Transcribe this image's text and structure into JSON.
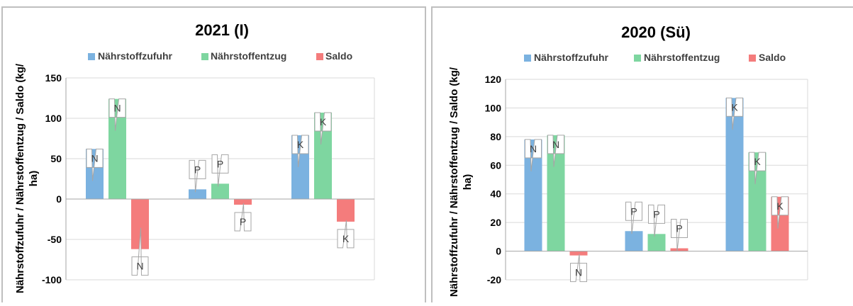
{
  "colors": {
    "zufuhr": "#7bb2e0",
    "entzug": "#7ed6a0",
    "saldo": "#f47c7c",
    "grid": "#d9d9d9",
    "axis": "#a6a6a6",
    "panel_border": "#bfbfbf",
    "callout_border": "#a6a6a6"
  },
  "chart_data": [
    {
      "type": "bar",
      "title": "2021 (I)",
      "ylabel": "Nährstoffzufuhr / Nährstoffentzug / Saldo (kg/ha)",
      "xlabel": "",
      "categories": [
        "N",
        "P",
        "K"
      ],
      "series": [
        {
          "name": "Nährstoffzufuhr",
          "values": [
            62,
            12,
            79
          ],
          "labels": [
            "N",
            "P",
            "K"
          ]
        },
        {
          "name": "Nährstoffentzug",
          "values": [
            124,
            19,
            107
          ],
          "labels": [
            "N",
            "P",
            "K"
          ]
        },
        {
          "name": "Saldo",
          "values": [
            -62,
            -7,
            -28
          ],
          "labels": [
            "N",
            "P",
            "K"
          ]
        }
      ],
      "ylim": [
        -100,
        150
      ],
      "yticks": [
        -100,
        -50,
        0,
        50,
        100,
        150
      ],
      "grid": true,
      "legend": "top"
    },
    {
      "type": "bar",
      "title": "2020 (Sü)",
      "ylabel": "Nährstoffzufuhr / Nährstoffentzug / Saldo (kg/ha)",
      "xlabel": "",
      "categories": [
        "N",
        "P",
        "K"
      ],
      "series": [
        {
          "name": "Nährstoffzufuhr",
          "values": [
            78,
            14,
            107
          ],
          "labels": [
            "N",
            "P",
            "K"
          ]
        },
        {
          "name": "Nährstoffentzug",
          "values": [
            81,
            12,
            69
          ],
          "labels": [
            "N",
            "P",
            "K"
          ]
        },
        {
          "name": "Saldo",
          "values": [
            -3,
            2,
            38
          ],
          "labels": [
            "N",
            "P",
            "K"
          ]
        }
      ],
      "ylim": [
        -20,
        120
      ],
      "yticks": [
        -20,
        0,
        20,
        40,
        60,
        80,
        100,
        120
      ],
      "grid": true,
      "legend": "top"
    }
  ]
}
